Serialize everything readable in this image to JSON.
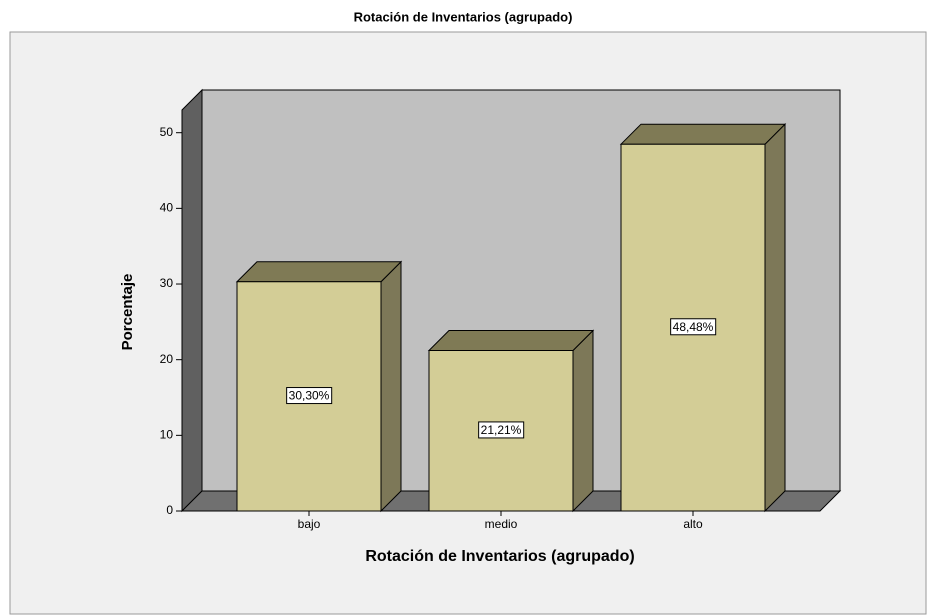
{
  "chart_data": {
    "type": "bar3d",
    "title": "Rotación de Inventarios (agrupado)",
    "x_label": "Rotación de Inventarios (agrupado)",
    "y_label": "Porcentaje",
    "categories": [
      "bajo",
      "medio",
      "alto"
    ],
    "values": [
      30.3,
      21.21,
      48.48
    ],
    "value_labels": [
      "30,30%",
      "21,21%",
      "48,48%"
    ],
    "color": "#d3cd96",
    "ylim": [
      0,
      53
    ],
    "yticks": [
      0,
      10,
      20,
      30,
      40,
      50
    ]
  }
}
